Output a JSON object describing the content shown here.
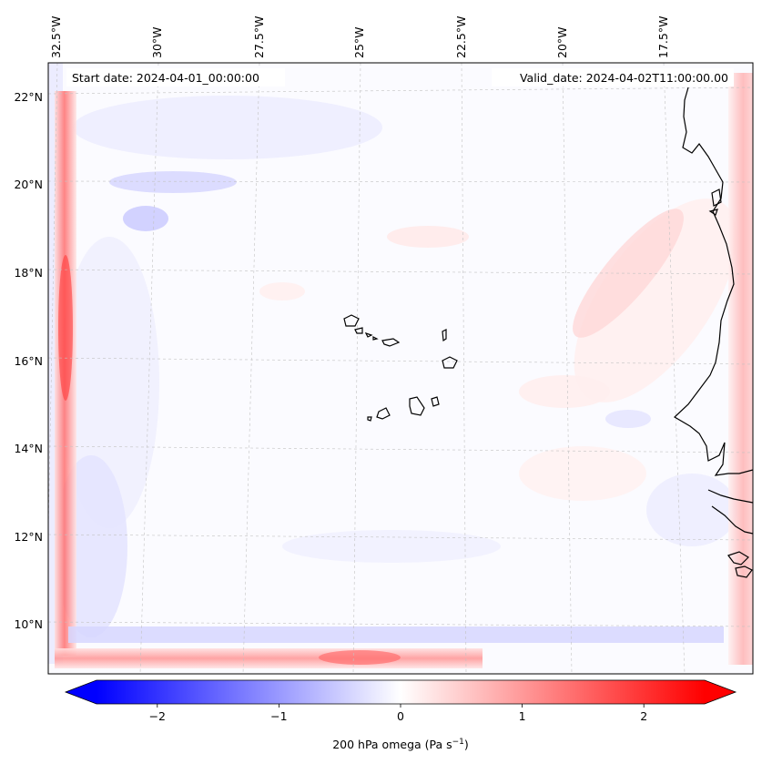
{
  "map": {
    "start_date_label": "Start date: 2024-04-01_00:00:00",
    "valid_date_label": "Valid_date: 2024-04-02T11:00:00.00",
    "lon_labels": [
      "32.5°W",
      "30°W",
      "27.5°W",
      "25°W",
      "22.5°W",
      "20°W",
      "17.5°W"
    ],
    "lat_labels": [
      "22°N",
      "20°N",
      "18°N",
      "16°N",
      "14°N",
      "12°N",
      "10°N"
    ],
    "colors": {
      "negative": "#0000ff",
      "positive": "#ff0000",
      "zero": "#ffffff",
      "coastline": "#000000",
      "gridline": "#b0b0b0"
    }
  },
  "colorbar": {
    "label": "200 hPa omega (Pa s",
    "label_exponent": "−1",
    "label_close": ")",
    "tick_labels": [
      "−2",
      "−1",
      "0",
      "1",
      "2"
    ],
    "tick_values": [
      -2,
      -1,
      0,
      1,
      2
    ],
    "range": [
      -2.5,
      2.5
    ],
    "extend": "both",
    "colormap": "bwr"
  }
}
